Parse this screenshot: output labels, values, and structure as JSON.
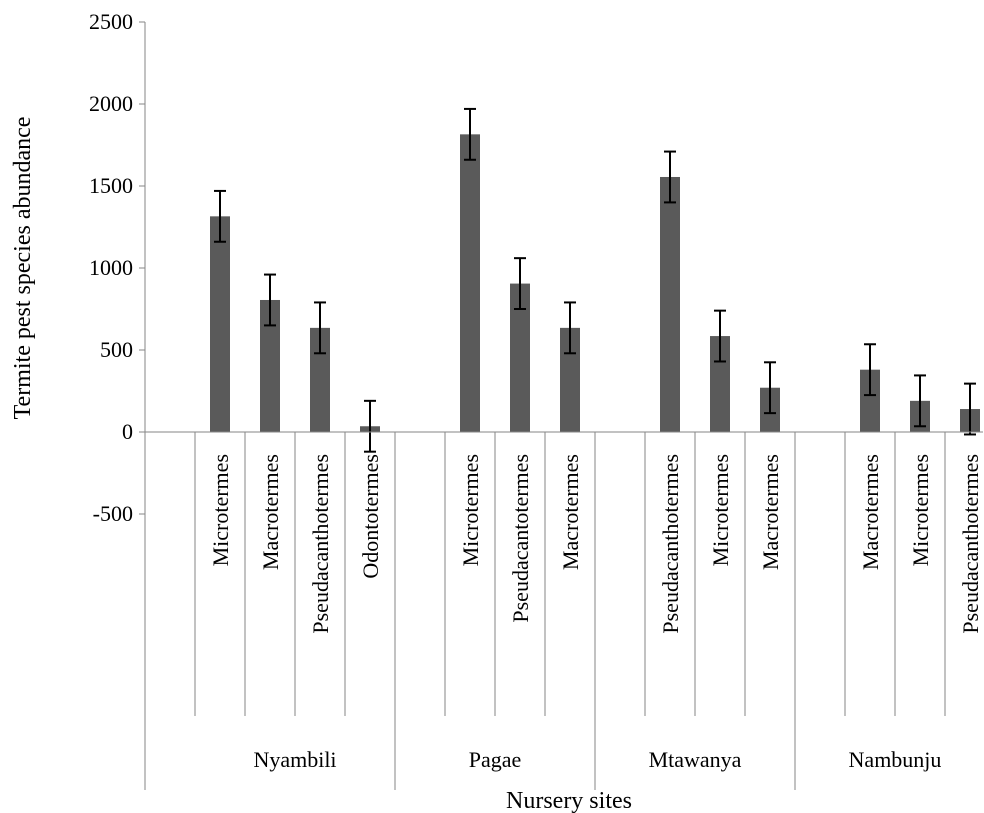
{
  "chart_data": {
    "type": "bar",
    "title": "",
    "xlabel": "Nursery sites",
    "ylabel": "Termite pest species abundance",
    "ylim": [
      -500,
      2500
    ],
    "yticks": [
      "2500",
      "2000",
      "1500",
      "1000",
      "500",
      "0",
      "-500"
    ],
    "ytick_values": [
      2500,
      2000,
      1500,
      1000,
      500,
      0,
      -500
    ],
    "grid": false,
    "legend": "none",
    "bar_color": "#5a5a5a",
    "groups": [
      {
        "name": "Nyambili",
        "bars": [
          {
            "label": "Microtermes",
            "value": 1315,
            "error": 155
          },
          {
            "label": "Macrotermes",
            "value": 805,
            "error": 155
          },
          {
            "label": "Pseudacanthotermes",
            "value": 635,
            "error": 155
          },
          {
            "label": "Odontotermes",
            "value": 35,
            "error": 155
          }
        ]
      },
      {
        "name": "Pagae",
        "bars": [
          {
            "label": "Microtermes",
            "value": 1815,
            "error": 155
          },
          {
            "label": "Pseudacantotermes",
            "value": 905,
            "error": 155
          },
          {
            "label": "Macrotermes",
            "value": 635,
            "error": 155
          }
        ]
      },
      {
        "name": "Mtawanya",
        "bars": [
          {
            "label": "Pseudacanthotermes",
            "value": 1555,
            "error": 155
          },
          {
            "label": "Microtermes",
            "value": 585,
            "error": 155
          },
          {
            "label": "Macrotermes",
            "value": 270,
            "error": 155
          }
        ]
      },
      {
        "name": "Nambunju",
        "bars": [
          {
            "label": "Macrotermes",
            "value": 380,
            "error": 155
          },
          {
            "label": "Microtermes",
            "value": 190,
            "error": 155
          },
          {
            "label": "Pseudacanthotermes",
            "value": 140,
            "error": 155
          }
        ]
      }
    ]
  }
}
